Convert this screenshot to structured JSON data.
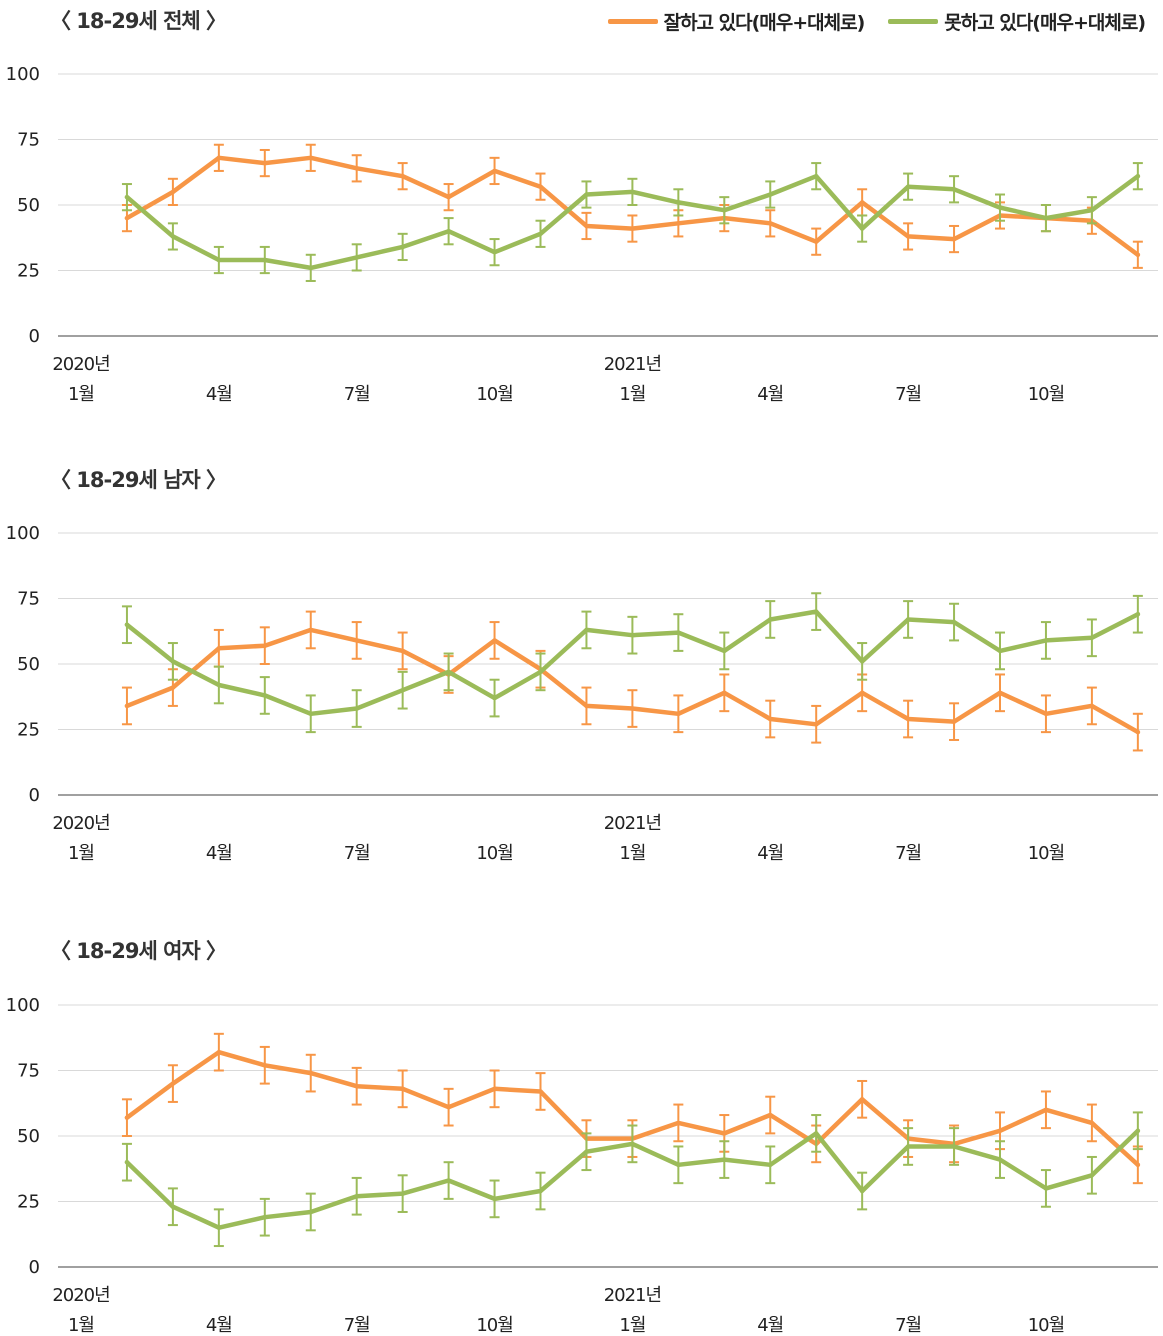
{
  "legend": {
    "good_label": "잘하고 있다(매우+대체로)",
    "bad_label": "못하고 있다(매우+대체로)",
    "good_color": "#F79646",
    "bad_color": "#9BBB59"
  },
  "chart_data": [
    {
      "type": "line",
      "title": "〈 18-29세 전체 〉",
      "x_year_labels": [
        {
          "index": 0,
          "label": "2020년"
        },
        {
          "index": 12,
          "label": "2021년"
        }
      ],
      "x_month_ticks": [
        {
          "index": 0,
          "label": "1월"
        },
        {
          "index": 3,
          "label": "4월"
        },
        {
          "index": 6,
          "label": "7월"
        },
        {
          "index": 9,
          "label": "10월"
        },
        {
          "index": 12,
          "label": "1월"
        },
        {
          "index": 15,
          "label": "4월"
        },
        {
          "index": 18,
          "label": "7월"
        },
        {
          "index": 21,
          "label": "10월"
        }
      ],
      "x_start_index": 1,
      "ylim": [
        0,
        100
      ],
      "yticks": [
        0,
        25,
        50,
        75,
        100
      ],
      "error_margin": 5,
      "grid": true,
      "series": [
        {
          "name": "잘하고 있다(매우+대체로)",
          "color": "#F79646",
          "values": [
            45,
            55,
            68,
            66,
            68,
            64,
            61,
            53,
            63,
            57,
            42,
            41,
            43,
            45,
            43,
            36,
            51,
            38,
            37,
            46,
            45,
            44,
            31
          ]
        },
        {
          "name": "못하고 있다(매우+대체로)",
          "color": "#9BBB59",
          "values": [
            53,
            38,
            29,
            29,
            26,
            30,
            34,
            40,
            32,
            39,
            54,
            55,
            51,
            48,
            54,
            61,
            41,
            57,
            56,
            49,
            45,
            48,
            61
          ]
        }
      ]
    },
    {
      "type": "line",
      "title": "〈 18-29세 남자 〉",
      "x_year_labels": [
        {
          "index": 0,
          "label": "2020년"
        },
        {
          "index": 12,
          "label": "2021년"
        }
      ],
      "x_month_ticks": [
        {
          "index": 0,
          "label": "1월"
        },
        {
          "index": 3,
          "label": "4월"
        },
        {
          "index": 6,
          "label": "7월"
        },
        {
          "index": 9,
          "label": "10월"
        },
        {
          "index": 12,
          "label": "1월"
        },
        {
          "index": 15,
          "label": "4월"
        },
        {
          "index": 18,
          "label": "7월"
        },
        {
          "index": 21,
          "label": "10월"
        }
      ],
      "x_start_index": 1,
      "ylim": [
        0,
        100
      ],
      "yticks": [
        0,
        25,
        50,
        75,
        100
      ],
      "error_margin": 7,
      "grid": true,
      "series": [
        {
          "name": "잘하고 있다(매우+대체로)",
          "color": "#F79646",
          "values": [
            34,
            41,
            56,
            57,
            63,
            59,
            55,
            46,
            59,
            48,
            34,
            33,
            31,
            39,
            29,
            27,
            39,
            29,
            28,
            39,
            31,
            34,
            24
          ]
        },
        {
          "name": "못하고 있다(매우+대체로)",
          "color": "#9BBB59",
          "values": [
            65,
            51,
            42,
            38,
            31,
            33,
            40,
            47,
            37,
            47,
            63,
            61,
            62,
            55,
            67,
            70,
            51,
            67,
            66,
            55,
            59,
            60,
            69
          ]
        }
      ]
    },
    {
      "type": "line",
      "title": "〈 18-29세 여자 〉",
      "x_year_labels": [
        {
          "index": 0,
          "label": "2020년"
        },
        {
          "index": 12,
          "label": "2021년"
        }
      ],
      "x_month_ticks": [
        {
          "index": 0,
          "label": "1월"
        },
        {
          "index": 3,
          "label": "4월"
        },
        {
          "index": 6,
          "label": "7월"
        },
        {
          "index": 9,
          "label": "10월"
        },
        {
          "index": 12,
          "label": "1월"
        },
        {
          "index": 15,
          "label": "4월"
        },
        {
          "index": 18,
          "label": "7월"
        },
        {
          "index": 21,
          "label": "10월"
        }
      ],
      "x_start_index": 1,
      "ylim": [
        0,
        100
      ],
      "yticks": [
        0,
        25,
        50,
        75,
        100
      ],
      "error_margin": 7,
      "grid": true,
      "series": [
        {
          "name": "잘하고 있다(매우+대체로)",
          "color": "#F79646",
          "values": [
            57,
            70,
            82,
            77,
            74,
            69,
            68,
            61,
            68,
            67,
            49,
            49,
            55,
            51,
            58,
            47,
            64,
            49,
            47,
            52,
            60,
            55,
            39
          ]
        },
        {
          "name": "못하고 있다(매우+대체로)",
          "color": "#9BBB59",
          "values": [
            40,
            23,
            15,
            19,
            21,
            27,
            28,
            33,
            26,
            29,
            44,
            47,
            39,
            41,
            39,
            51,
            29,
            46,
            46,
            41,
            30,
            35,
            52
          ]
        }
      ]
    }
  ]
}
